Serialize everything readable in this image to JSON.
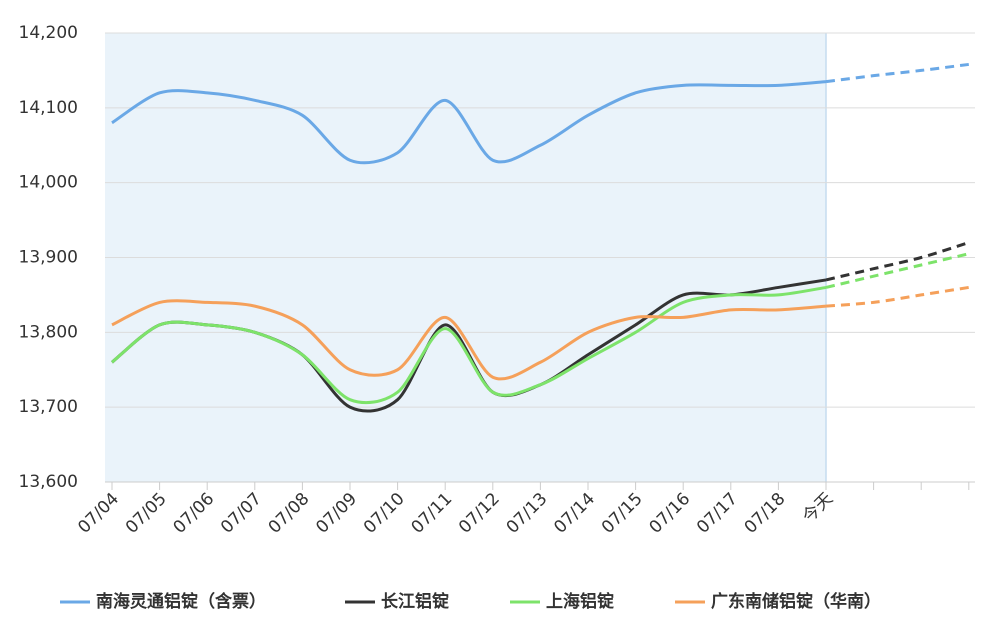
{
  "chart_data": {
    "type": "line",
    "categories": [
      "07/04",
      "07/05",
      "07/06",
      "07/07",
      "07/08",
      "07/09",
      "07/10",
      "07/11",
      "07/12",
      "07/13",
      "07/14",
      "07/15",
      "07/16",
      "07/17",
      "07/18",
      "今天",
      null,
      null,
      null
    ],
    "series": [
      {
        "name": "南海灵通铝锭（含票）",
        "color": "#6aa8e6",
        "values": [
          14080,
          14120,
          14120,
          14110,
          14090,
          14030,
          14040,
          14110,
          14030,
          14050,
          14090,
          14120,
          14130,
          14130,
          14130,
          14135,
          14143,
          14150,
          14158
        ]
      },
      {
        "name": "长江铝锭",
        "color": "#333333",
        "values": [
          13760,
          13810,
          13810,
          13800,
          13770,
          13700,
          13710,
          13810,
          13720,
          13730,
          13770,
          13810,
          13850,
          13850,
          13860,
          13870,
          13885,
          13900,
          13920
        ]
      },
      {
        "name": "上海铝锭",
        "color": "#7de36a",
        "values": [
          13760,
          13810,
          13810,
          13800,
          13770,
          13710,
          13720,
          13805,
          13720,
          13730,
          13765,
          13800,
          13840,
          13850,
          13850,
          13860,
          13875,
          13890,
          13905
        ]
      },
      {
        "name": "广东南储铝锭（华南）",
        "color": "#f5a05a",
        "values": [
          13810,
          13840,
          13840,
          13835,
          13810,
          13750,
          13750,
          13820,
          13740,
          13760,
          13800,
          13820,
          13820,
          13830,
          13830,
          13835,
          13840,
          13850,
          13860
        ]
      }
    ],
    "dashed_from_index": 15,
    "ylim": [
      13600,
      14200
    ],
    "yticks": [
      {
        "value": 13600,
        "label": "13,600"
      },
      {
        "value": 13700,
        "label": "13,700"
      },
      {
        "value": 13800,
        "label": "13,800"
      },
      {
        "value": 13900,
        "label": "13,900"
      },
      {
        "value": 14000,
        "label": "14,000"
      },
      {
        "value": 14100,
        "label": "14,100"
      },
      {
        "value": 14200,
        "label": "14,200"
      }
    ],
    "grid": true
  }
}
